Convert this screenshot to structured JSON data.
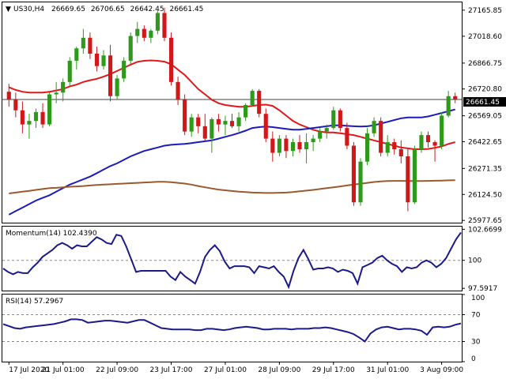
{
  "header": {
    "symbol": "US30,H4",
    "open": "26669.65",
    "high": "26706.65",
    "low": "26642.45",
    "close": "26661.45"
  },
  "momentum_panel": {
    "label": "Momentum(14) 102.4390"
  },
  "rsi_panel": {
    "label": "RSI(14) 57.2967"
  },
  "current_price_label": "26661.45",
  "colors": {
    "bull": "#2e9a1a",
    "bear": "#d01818",
    "ma_fast": "#e01818",
    "ma_mid": "#1c1cb8",
    "ma_slow": "#9a5a30",
    "indicator": "#1a1a88",
    "grid": "#888888"
  },
  "chart_data": [
    {
      "type": "candlestick",
      "title": "US30,H4",
      "yticks": [
        "27165.85",
        "27018.60",
        "26866.75",
        "26720.80",
        "26569.05",
        "26422.65",
        "26271.35",
        "26124.50",
        "25977.65"
      ],
      "ylim": [
        25965,
        27210
      ],
      "xticks": [
        "17 Jul 2020",
        "21 Jul 01:00",
        "22 Jul 09:00",
        "23 Jul 17:00",
        "27 Jul 01:00",
        "28 Jul 09:00",
        "29 Jul 17:00",
        "31 Jul 01:00",
        "3 Aug 09:00"
      ],
      "xtick_index": [
        0,
        8,
        16,
        24,
        32,
        40,
        48,
        56,
        64
      ],
      "candles": [
        [
          26705,
          26750,
          26620,
          26660
        ],
        [
          26660,
          26700,
          26560,
          26600
        ],
        [
          26600,
          26650,
          26470,
          26520
        ],
        [
          26520,
          26580,
          26440,
          26540
        ],
        [
          26540,
          26610,
          26500,
          26590
        ],
        [
          26590,
          26640,
          26500,
          26520
        ],
        [
          26520,
          26700,
          26510,
          26690
        ],
        [
          26690,
          26760,
          26640,
          26700
        ],
        [
          26700,
          26780,
          26650,
          26760
        ],
        [
          26760,
          26900,
          26740,
          26880
        ],
        [
          26880,
          26960,
          26830,
          26950
        ],
        [
          26950,
          27060,
          26920,
          27010
        ],
        [
          27010,
          27040,
          26890,
          26920
        ],
        [
          26920,
          26960,
          26820,
          26850
        ],
        [
          26850,
          26940,
          26830,
          26910
        ],
        [
          26910,
          26970,
          26650,
          26680
        ],
        [
          26680,
          26800,
          26660,
          26780
        ],
        [
          26780,
          26900,
          26760,
          26880
        ],
        [
          26880,
          27040,
          26860,
          27020
        ],
        [
          27020,
          27100,
          26980,
          27060
        ],
        [
          27060,
          27080,
          26990,
          27010
        ],
        [
          27010,
          27060,
          26980,
          27050
        ],
        [
          27050,
          27160,
          27030,
          27150
        ],
        [
          27150,
          27180,
          26990,
          27010
        ],
        [
          27010,
          27040,
          26740,
          26760
        ],
        [
          26760,
          26790,
          26630,
          26660
        ],
        [
          26660,
          26690,
          26460,
          26480
        ],
        [
          26480,
          26580,
          26450,
          26560
        ],
        [
          26560,
          26580,
          26470,
          26510
        ],
        [
          26510,
          26580,
          26420,
          26440
        ],
        [
          26440,
          26560,
          26360,
          26550
        ],
        [
          26550,
          26580,
          26480,
          26520
        ],
        [
          26520,
          26570,
          26460,
          26540
        ],
        [
          26540,
          26580,
          26500,
          26510
        ],
        [
          26510,
          26590,
          26480,
          26560
        ],
        [
          26560,
          26640,
          26540,
          26630
        ],
        [
          26630,
          26720,
          26620,
          26710
        ],
        [
          26710,
          26720,
          26560,
          26580
        ],
        [
          26580,
          26610,
          26420,
          26440
        ],
        [
          26440,
          26480,
          26310,
          26360
        ],
        [
          26360,
          26460,
          26340,
          26440
        ],
        [
          26440,
          26460,
          26330,
          26370
        ],
        [
          26370,
          26440,
          26340,
          26420
        ],
        [
          26420,
          26460,
          26360,
          26380
        ],
        [
          26380,
          26470,
          26300,
          26420
        ],
        [
          26420,
          26460,
          26370,
          26440
        ],
        [
          26440,
          26500,
          26420,
          26480
        ],
        [
          26480,
          26520,
          26440,
          26500
        ],
        [
          26500,
          26620,
          26490,
          26600
        ],
        [
          26600,
          26610,
          26480,
          26500
        ],
        [
          26500,
          26530,
          26380,
          26400
        ],
        [
          26400,
          26420,
          26060,
          26080
        ],
        [
          26080,
          26330,
          26060,
          26310
        ],
        [
          26310,
          26500,
          26290,
          26470
        ],
        [
          26470,
          26560,
          26450,
          26540
        ],
        [
          26540,
          26560,
          26340,
          26360
        ],
        [
          26360,
          26460,
          26340,
          26420
        ],
        [
          26420,
          26440,
          26350,
          26380
        ],
        [
          26380,
          26430,
          26300,
          26340
        ],
        [
          26340,
          26380,
          26030,
          26080
        ],
        [
          26080,
          26400,
          26070,
          26380
        ],
        [
          26380,
          26480,
          26360,
          26460
        ],
        [
          26460,
          26480,
          26390,
          26420
        ],
        [
          26420,
          26430,
          26310,
          26400
        ],
        [
          26400,
          26590,
          26380,
          26570
        ],
        [
          26570,
          26710,
          26560,
          26680
        ],
        [
          26680,
          26700,
          26640,
          26661
        ]
      ],
      "series": [
        {
          "name": "MA fast",
          "values": [
            26730,
            26715,
            26705,
            26700,
            26700,
            26700,
            26705,
            26712,
            26720,
            26735,
            26745,
            26760,
            26770,
            26778,
            26790,
            26805,
            26822,
            26840,
            26858,
            26874,
            26880,
            26882,
            26880,
            26875,
            26860,
            26830,
            26800,
            26760,
            26720,
            26690,
            26660,
            26640,
            26630,
            26625,
            26620,
            26620,
            26625,
            26630,
            26632,
            26625,
            26600,
            26570,
            26540,
            26520,
            26505,
            26490,
            26480,
            26475,
            26475,
            26470,
            26465,
            26460,
            26450,
            26440,
            26430,
            26420,
            26410,
            26400,
            26390,
            26385,
            26380,
            26380,
            26382,
            26388,
            26396,
            26410,
            26420
          ]
        },
        {
          "name": "MA mid",
          "values": [
            26010,
            26030,
            26050,
            26070,
            26090,
            26105,
            26120,
            26140,
            26160,
            26180,
            26195,
            26210,
            26225,
            26245,
            26265,
            26285,
            26300,
            26320,
            26340,
            26355,
            26370,
            26380,
            26390,
            26400,
            26405,
            26408,
            26410,
            26415,
            26420,
            26425,
            26430,
            26440,
            26450,
            26460,
            26472,
            26485,
            26500,
            26505,
            26508,
            26505,
            26500,
            26495,
            26490,
            26490,
            26495,
            26500,
            26505,
            26510,
            26515,
            26515,
            26512,
            26510,
            26508,
            26510,
            26515,
            26525,
            26535,
            26545,
            26555,
            26560,
            26560,
            26560,
            26565,
            26575,
            26585,
            26595,
            26605
          ]
        },
        {
          "name": "MA slow",
          "values": [
            26130,
            26135,
            26140,
            26145,
            26150,
            26155,
            26160,
            26162,
            26165,
            26168,
            26170,
            26172,
            26175,
            26178,
            26180,
            26182,
            26184,
            26186,
            26188,
            26190,
            26192,
            26194,
            26196,
            26196,
            26194,
            26190,
            26186,
            26180,
            26172,
            26165,
            26158,
            26152,
            26148,
            26144,
            26140,
            26138,
            26135,
            26134,
            26133,
            26133,
            26134,
            26135,
            26138,
            26142,
            26146,
            26150,
            26155,
            26160,
            26165,
            26170,
            26175,
            26180,
            26185,
            26190,
            26195,
            26198,
            26200,
            26201,
            26201,
            26200,
            26200,
            26200,
            26201,
            26202,
            26203,
            26204,
            26205
          ]
        }
      ]
    },
    {
      "type": "line",
      "title": "Momentum(14) 102.4390",
      "yticks": [
        "102.6699",
        "100",
        "97.5917"
      ],
      "ylim": [
        97.4,
        102.9
      ],
      "dashed_level": 100,
      "series": [
        {
          "name": "Momentum(14)",
          "values": [
            99.3,
            99.0,
            98.8,
            99.0,
            98.9,
            98.9,
            99.4,
            99.8,
            100.3,
            100.6,
            100.9,
            101.3,
            101.5,
            101.3,
            101.0,
            101.3,
            101.2,
            101.2,
            101.6,
            102.0,
            101.8,
            101.5,
            101.4,
            102.2,
            102.1,
            101.2,
            100.1,
            99.0,
            99.1,
            99.1,
            99.1,
            99.1,
            99.1,
            99.1,
            98.6,
            98.3,
            99.0,
            98.6,
            98.3,
            98.0,
            99.0,
            100.3,
            100.9,
            101.3,
            100.8,
            99.9,
            99.3,
            99.5,
            99.5,
            99.5,
            99.4,
            98.9,
            99.5,
            99.4,
            99.3,
            99.5,
            99.0,
            98.6,
            97.7,
            99.1,
            100.2,
            100.9,
            100.1,
            99.2,
            99.3,
            99.3,
            99.4,
            99.3,
            99.0,
            99.2,
            99.1,
            98.9,
            98.0,
            99.4,
            99.6,
            99.8,
            100.2,
            100.4,
            100.0,
            99.7,
            99.5,
            99.0,
            99.4,
            99.3,
            99.4,
            99.8,
            100.0,
            99.8,
            99.4,
            99.7,
            100.2,
            101.0,
            101.8,
            102.4
          ]
        }
      ]
    },
    {
      "type": "line",
      "title": "RSI(14) 57.2967",
      "yticks": [
        "100",
        "70",
        "30",
        "0"
      ],
      "ylim": [
        0,
        100
      ],
      "dashed_levels": [
        70,
        30
      ],
      "series": [
        {
          "name": "RSI(14)",
          "values": [
            56,
            53,
            50,
            49,
            51,
            52,
            53,
            54,
            55,
            56,
            58,
            60,
            63,
            63,
            62,
            58,
            59,
            60,
            61,
            61,
            60,
            59,
            58,
            60,
            62,
            62,
            58,
            54,
            50,
            49,
            48,
            48,
            48,
            48,
            47,
            47,
            49,
            49,
            48,
            47,
            48,
            50,
            51,
            52,
            51,
            50,
            48,
            48,
            49,
            49,
            49,
            48,
            49,
            49,
            49,
            50,
            50,
            51,
            50,
            48,
            46,
            44,
            41,
            36,
            30,
            42,
            48,
            51,
            52,
            50,
            48,
            49,
            49,
            48,
            46,
            40,
            51,
            52,
            51,
            52,
            55,
            57
          ]
        }
      ]
    }
  ]
}
